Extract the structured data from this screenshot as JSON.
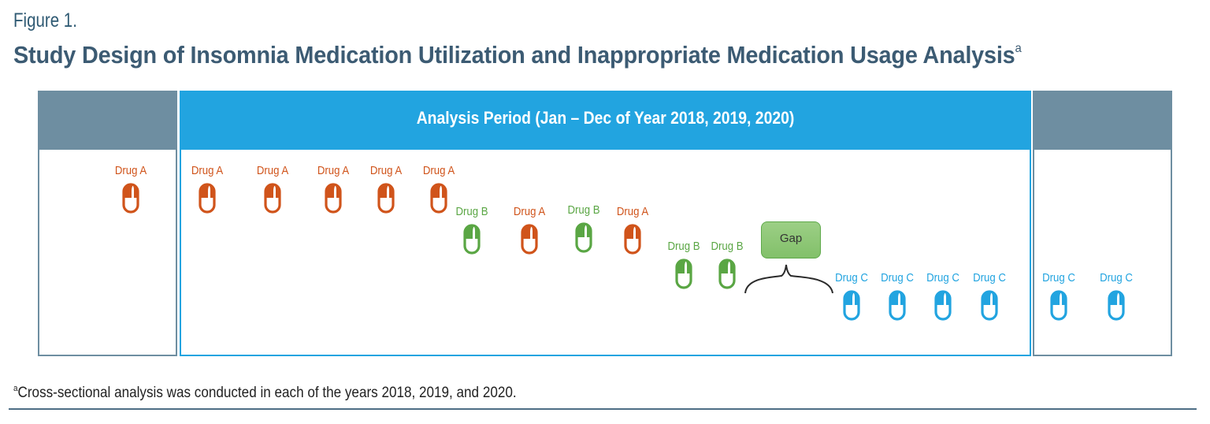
{
  "figure_label": "Figure 1.",
  "title": "Study Design of Insomnia Medication Utilization and Inappropriate Medication Usage Analysis",
  "title_superscript": "a",
  "colors": {
    "drug_a": "#d0541b",
    "drug_b": "#5aa644",
    "drug_c": "#22a4e0",
    "panel_gray": "#6e8ea1",
    "panel_blue": "#22a4e0",
    "title": "#3c5b73"
  },
  "panels": {
    "left": {
      "header": ""
    },
    "main": {
      "header": "Analysis Period (Jan – Dec of Year 2018, 2019, 2020)"
    },
    "right": {
      "header": ""
    }
  },
  "drugs": {
    "left": [
      {
        "label": "Drug A",
        "type": "drug_a",
        "icon": "capsule-icon"
      }
    ],
    "main": [
      {
        "label": "Drug A",
        "type": "drug_a",
        "icon": "capsule-icon"
      },
      {
        "label": "Drug A",
        "type": "drug_a",
        "icon": "capsule-icon"
      },
      {
        "label": "Drug A",
        "type": "drug_a",
        "icon": "capsule-icon"
      },
      {
        "label": "Drug A",
        "type": "drug_a",
        "icon": "capsule-icon"
      },
      {
        "label": "Drug A",
        "type": "drug_a",
        "icon": "capsule-icon"
      },
      {
        "label": "Drug B",
        "type": "drug_b",
        "icon": "capsule-icon"
      },
      {
        "label": "Drug A",
        "type": "drug_a",
        "icon": "capsule-icon"
      },
      {
        "label": "Drug B",
        "type": "drug_b",
        "icon": "capsule-icon"
      },
      {
        "label": "Drug A",
        "type": "drug_a",
        "icon": "capsule-icon"
      },
      {
        "label": "Drug B",
        "type": "drug_b",
        "icon": "capsule-icon"
      },
      {
        "label": "Drug B",
        "type": "drug_b",
        "icon": "capsule-icon"
      },
      {
        "label": "Drug C",
        "type": "drug_c",
        "icon": "capsule-icon"
      },
      {
        "label": "Drug C",
        "type": "drug_c",
        "icon": "capsule-icon"
      },
      {
        "label": "Drug C",
        "type": "drug_c",
        "icon": "capsule-icon"
      },
      {
        "label": "Drug C",
        "type": "drug_c",
        "icon": "capsule-icon"
      }
    ],
    "right": [
      {
        "label": "Drug C",
        "type": "drug_c",
        "icon": "capsule-icon"
      },
      {
        "label": "Drug C",
        "type": "drug_c",
        "icon": "capsule-icon"
      }
    ]
  },
  "gap": {
    "label": "Gap",
    "icon": "curly-brace-icon"
  },
  "footnote": {
    "marker": "a",
    "text": "Cross-sectional analysis was conducted in each of the years 2018, 2019, and 2020."
  }
}
